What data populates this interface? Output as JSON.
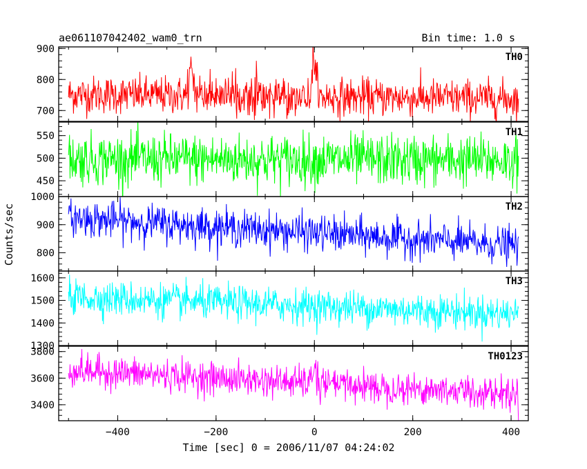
{
  "header": {
    "title": "ae061107042402_wam0_trn",
    "bin_time": "Bin time: 1.0 s"
  },
  "chart_data": {
    "type": "line",
    "title": "ae061107042402_wam0_trn",
    "annotation": "Bin time: 1.0 s",
    "xlabel": "Time [sec] 0 = 2006/11/07 04:24:02",
    "ylabel": "Counts/sec",
    "xlim": [
      -520,
      435
    ],
    "x_ticks": [
      -400,
      -200,
      0,
      200,
      400
    ],
    "x_range": [
      -500,
      415
    ],
    "x_step": 1,
    "grid": false,
    "legend": "none",
    "panels": [
      {
        "name": "TH0",
        "color": "#ff0000",
        "ylim": [
          665,
          905
        ],
        "y_ticks": [
          700,
          800,
          900
        ],
        "baseline_start": 752,
        "baseline_end": 738,
        "noise_sd": 30,
        "features": [
          {
            "kind": "spike",
            "at": 0,
            "peak": 888
          },
          {
            "kind": "spike",
            "at": -250,
            "peak": 860
          }
        ]
      },
      {
        "name": "TH1",
        "color": "#00ff00",
        "ylim": [
          415,
          580
        ],
        "y_ticks": [
          450,
          500,
          550
        ],
        "baseline_start": 498,
        "baseline_end": 495,
        "noise_sd": 28
      },
      {
        "name": "TH2",
        "color": "#0000ff",
        "ylim": [
          735,
          1000
        ],
        "y_ticks": [
          800,
          900,
          1000
        ],
        "baseline_start": 925,
        "baseline_end": 825,
        "noise_sd": 32
      },
      {
        "name": "TH3",
        "color": "#00ffff",
        "ylim": [
          1300,
          1630
        ],
        "y_ticks": [
          1300,
          1400,
          1500,
          1600
        ],
        "baseline_start": 1515,
        "baseline_end": 1440,
        "noise_sd": 38
      },
      {
        "name": "TH0123",
        "color": "#ff00ff",
        "ylim": [
          3280,
          3840
        ],
        "y_ticks": [
          3400,
          3600,
          3800
        ],
        "baseline_start": 3660,
        "baseline_end": 3480,
        "noise_sd": 60,
        "features": [
          {
            "kind": "spike",
            "at": 0,
            "peak": 3800
          }
        ]
      }
    ]
  }
}
